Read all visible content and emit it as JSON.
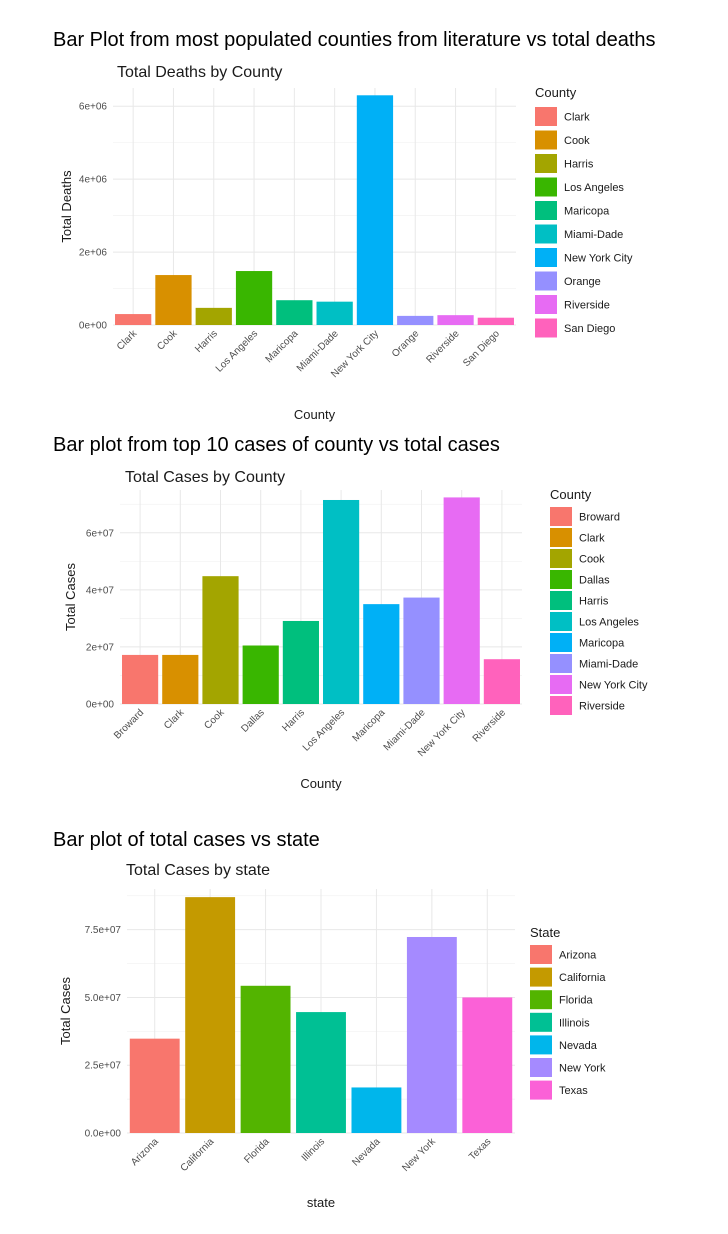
{
  "headings": [
    "Bar Plot from most populated counties from literature vs total deaths",
    "Bar plot from top 10 cases of county vs total cases",
    "Bar plot of total cases vs state"
  ],
  "chart_data": [
    {
      "type": "bar",
      "title": "Total Deaths by County",
      "xlabel": "County",
      "ylabel": "Total Deaths",
      "categories": [
        "Clark",
        "Cook",
        "Harris",
        "Los Angeles",
        "Maricopa",
        "Miami-Dade",
        "New York City",
        "Orange",
        "Riverside",
        "San Diego"
      ],
      "values": [
        300000,
        1370000,
        470000,
        1480000,
        680000,
        640000,
        6300000,
        250000,
        270000,
        200000
      ],
      "colors": [
        "#F8766D",
        "#D89000",
        "#A3A500",
        "#39B600",
        "#00BF7D",
        "#00BFC4",
        "#00B0F6",
        "#9590FF",
        "#E76BF3",
        "#FF62BC"
      ],
      "ylim": [
        0,
        6500000
      ],
      "yticks": [
        0,
        2000000,
        4000000,
        6000000
      ],
      "ytick_labels": [
        "0e+00",
        "2e+06",
        "4e+06",
        "6e+06"
      ],
      "legend_title": "County",
      "legend_position": "right",
      "grid": true
    },
    {
      "type": "bar",
      "title": "Total Cases by County",
      "xlabel": "County",
      "ylabel": "Total Cases",
      "categories": [
        "Broward",
        "Clark",
        "Cook",
        "Dallas",
        "Harris",
        "Los Angeles",
        "Maricopa",
        "Miami-Dade",
        "New York City",
        "Riverside"
      ],
      "values": [
        17200000,
        17200000,
        44800000,
        20500000,
        29100000,
        71500000,
        35000000,
        37300000,
        72400000,
        15700000
      ],
      "colors": [
        "#F8766D",
        "#D89000",
        "#A3A500",
        "#39B600",
        "#00BF7D",
        "#00BFC4",
        "#00B0F6",
        "#9590FF",
        "#E76BF3",
        "#FF62BC"
      ],
      "ylim": [
        0,
        75000000
      ],
      "yticks": [
        0,
        20000000,
        40000000,
        60000000
      ],
      "ytick_labels": [
        "0e+00",
        "2e+07",
        "4e+07",
        "6e+07"
      ],
      "legend_title": "County",
      "legend_position": "right",
      "grid": true
    },
    {
      "type": "bar",
      "title": "Total Cases by state",
      "xlabel": "state",
      "ylabel": "Total Cases",
      "categories": [
        "Arizona",
        "California",
        "Florida",
        "Illinois",
        "Nevada",
        "New York",
        "Texas"
      ],
      "values": [
        34800000,
        87000000,
        54300000,
        44600000,
        16800000,
        72300000,
        50000000
      ],
      "colors": [
        "#F8766D",
        "#C49A00",
        "#53B400",
        "#00C094",
        "#00B6EB",
        "#A58AFF",
        "#FB61D7"
      ],
      "ylim": [
        0,
        90000000
      ],
      "yticks": [
        0,
        25000000,
        50000000,
        75000000
      ],
      "ytick_labels": [
        "0.0e+00",
        "2.5e+07",
        "5.0e+07",
        "7.5e+07"
      ],
      "legend_title": "State",
      "legend_position": "right",
      "grid": true
    }
  ]
}
